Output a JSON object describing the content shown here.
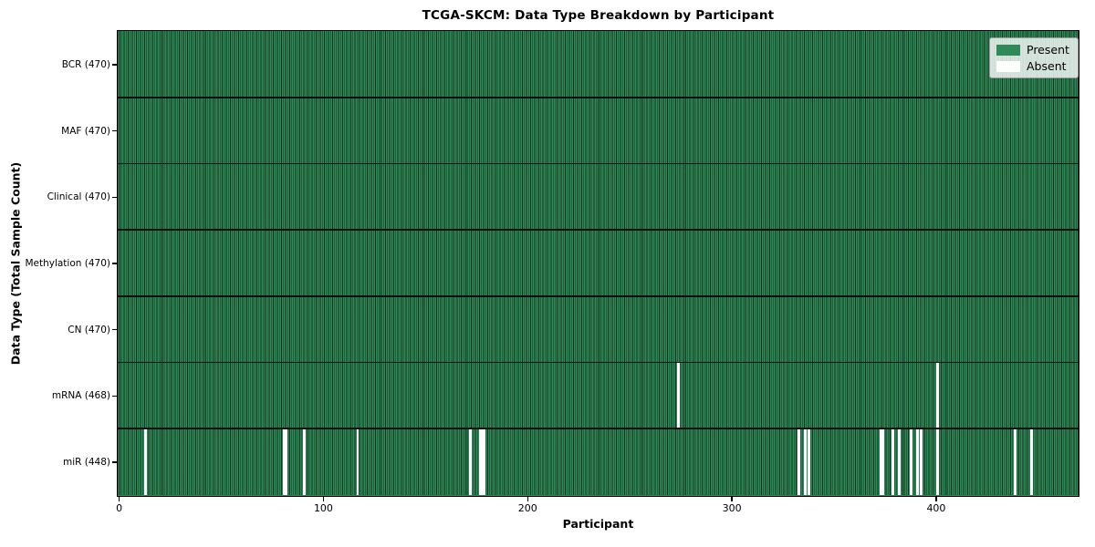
{
  "chart_data": {
    "type": "heatmap",
    "title": "TCGA-SKCM: Data Type Breakdown by Participant",
    "xlabel": "Participant",
    "ylabel": "Data Type (Total Sample Count)",
    "n_participants": 470,
    "x_ticks": [
      0,
      100,
      200,
      300,
      400
    ],
    "rows": [
      {
        "name": "BCR",
        "count": 470,
        "label": "BCR (470)",
        "absent": []
      },
      {
        "name": "MAF",
        "count": 470,
        "label": "MAF (470)",
        "absent": []
      },
      {
        "name": "Clinical",
        "count": 470,
        "label": "Clinical (470)",
        "absent": []
      },
      {
        "name": "Methylation",
        "count": 470,
        "label": "Methylation (470)",
        "absent": []
      },
      {
        "name": "CN",
        "count": 470,
        "label": "CN (470)",
        "absent": []
      },
      {
        "name": "mRNA",
        "count": 468,
        "label": "mRNA (468)",
        "absent": [
          274,
          401
        ]
      },
      {
        "name": "miR",
        "count": 448,
        "label": "miR (448)",
        "absent": [
          13,
          81,
          82,
          91,
          117,
          172,
          177,
          178,
          179,
          333,
          336,
          338,
          373,
          374,
          379,
          382,
          388,
          391,
          393,
          401,
          439,
          447
        ]
      }
    ],
    "legend": {
      "position": "upper right",
      "entries": [
        {
          "label": "Present",
          "color": "#2e8b57"
        },
        {
          "label": "Absent",
          "color": "#ffffff"
        }
      ]
    },
    "colors": {
      "present": "#2e8b57",
      "absent": "#ffffff",
      "cell_edge": "#12321f",
      "row_divider": "#101010",
      "plot_border": "#000000",
      "background": "#ffffff"
    }
  }
}
